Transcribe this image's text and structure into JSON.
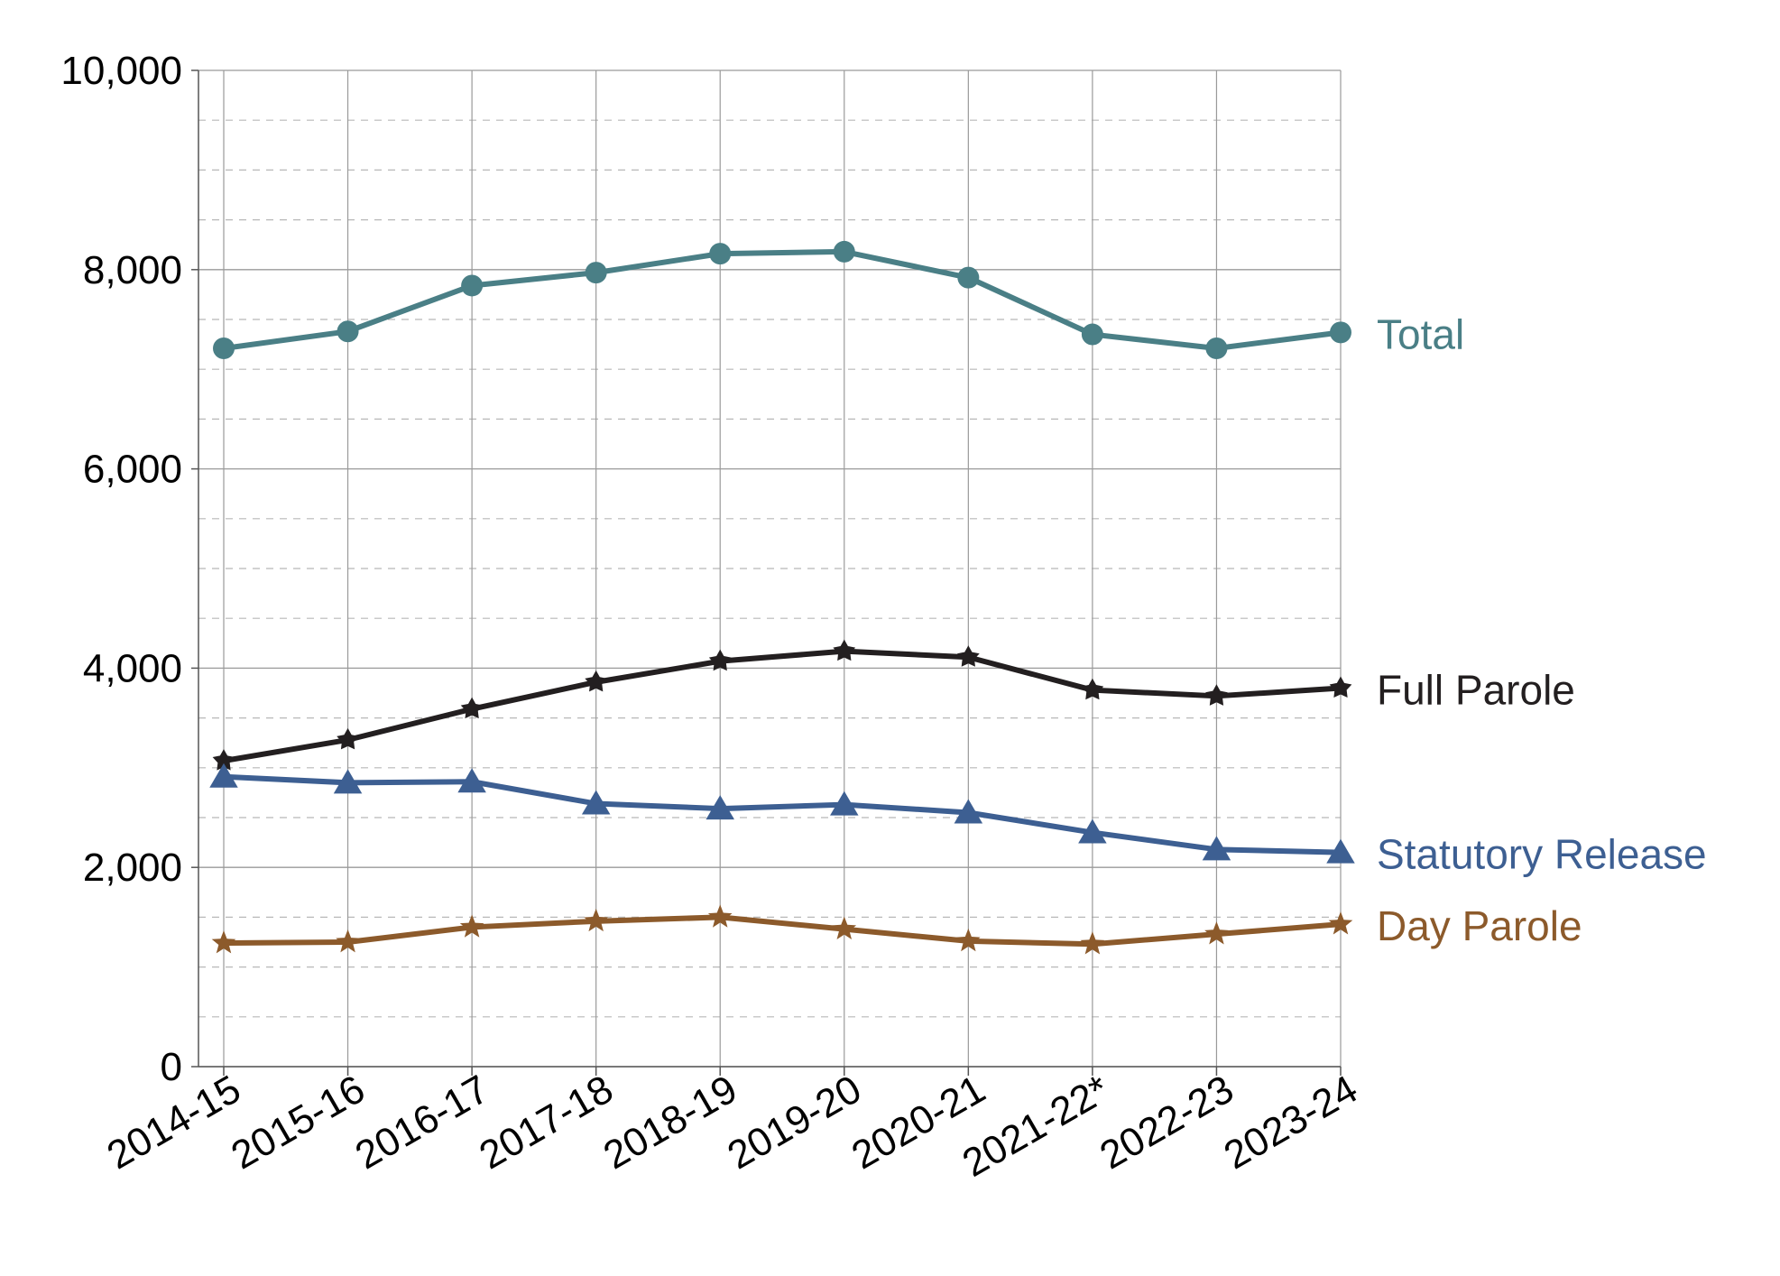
{
  "chart_data": {
    "type": "line",
    "categories": [
      "2014-15",
      "2015-16",
      "2016-17",
      "2017-18",
      "2018-19",
      "2019-20",
      "2020-21",
      "2021-22*",
      "2022-23",
      "2023-24"
    ],
    "yticks": [
      "0",
      "2,000",
      "4,000",
      "6,000",
      "8,000",
      "10,000"
    ],
    "ylim": [
      0,
      10000
    ],
    "grid": true,
    "legend": "inline labels at right end of lines",
    "series": [
      {
        "name": "Total",
        "color": "#4a7f86",
        "marker": "circle",
        "values": [
          7210,
          7380,
          7840,
          7970,
          8160,
          8180,
          7920,
          7350,
          7210,
          7370
        ]
      },
      {
        "name": "Full Parole",
        "color": "#231f20",
        "marker": "diamond",
        "values": [
          3070,
          3280,
          3590,
          3860,
          4070,
          4170,
          4110,
          3780,
          3720,
          3800
        ]
      },
      {
        "name": "Statutory Release",
        "color": "#3d5f92",
        "marker": "triangle",
        "values": [
          2910,
          2850,
          2860,
          2640,
          2590,
          2630,
          2550,
          2350,
          2180,
          2150
        ]
      },
      {
        "name": "Day Parole",
        "color": "#8c5a2b",
        "marker": "star",
        "values": [
          1240,
          1250,
          1400,
          1460,
          1500,
          1380,
          1260,
          1230,
          1330,
          1430
        ]
      }
    ]
  }
}
